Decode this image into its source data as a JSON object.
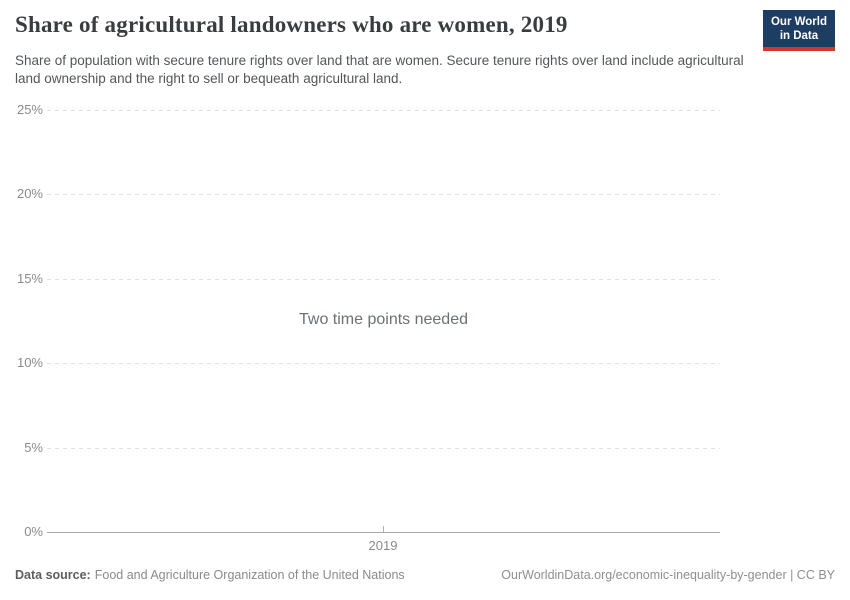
{
  "header": {
    "title": "Share of agricultural landowners who are women, 2019",
    "subtitle": "Share of population with secure tenure rights over land that are women. Secure tenure rights over land include agricultural land ownership and the right to sell or bequeath agricultural land.",
    "logo": {
      "line1": "Our World",
      "line2": "in Data"
    }
  },
  "chart_data": {
    "type": "line",
    "title": "Share of agricultural landowners who are women, 2019",
    "message": "Two time points needed",
    "series": [],
    "x": {
      "ticks": [
        "2019"
      ]
    },
    "y": {
      "min": 0,
      "max": 25,
      "tick_interval": 5,
      "tick_labels": [
        "0%",
        "5%",
        "10%",
        "15%",
        "20%",
        "25%"
      ],
      "unit": "%"
    },
    "grid": true,
    "legend": false
  },
  "footer": {
    "datasource_label": "Data source:",
    "datasource_value": "Food and Agriculture Organization of the United Nations",
    "link": "OurWorldinData.org/economic-inequality-by-gender | CC BY"
  },
  "colors": {
    "logo_bg": "#1d3d63",
    "logo_bar": "#d8352a",
    "gridline": "#e2e2e2",
    "axis": "#a8a8a8",
    "muted_text": "#8b8b8b"
  }
}
